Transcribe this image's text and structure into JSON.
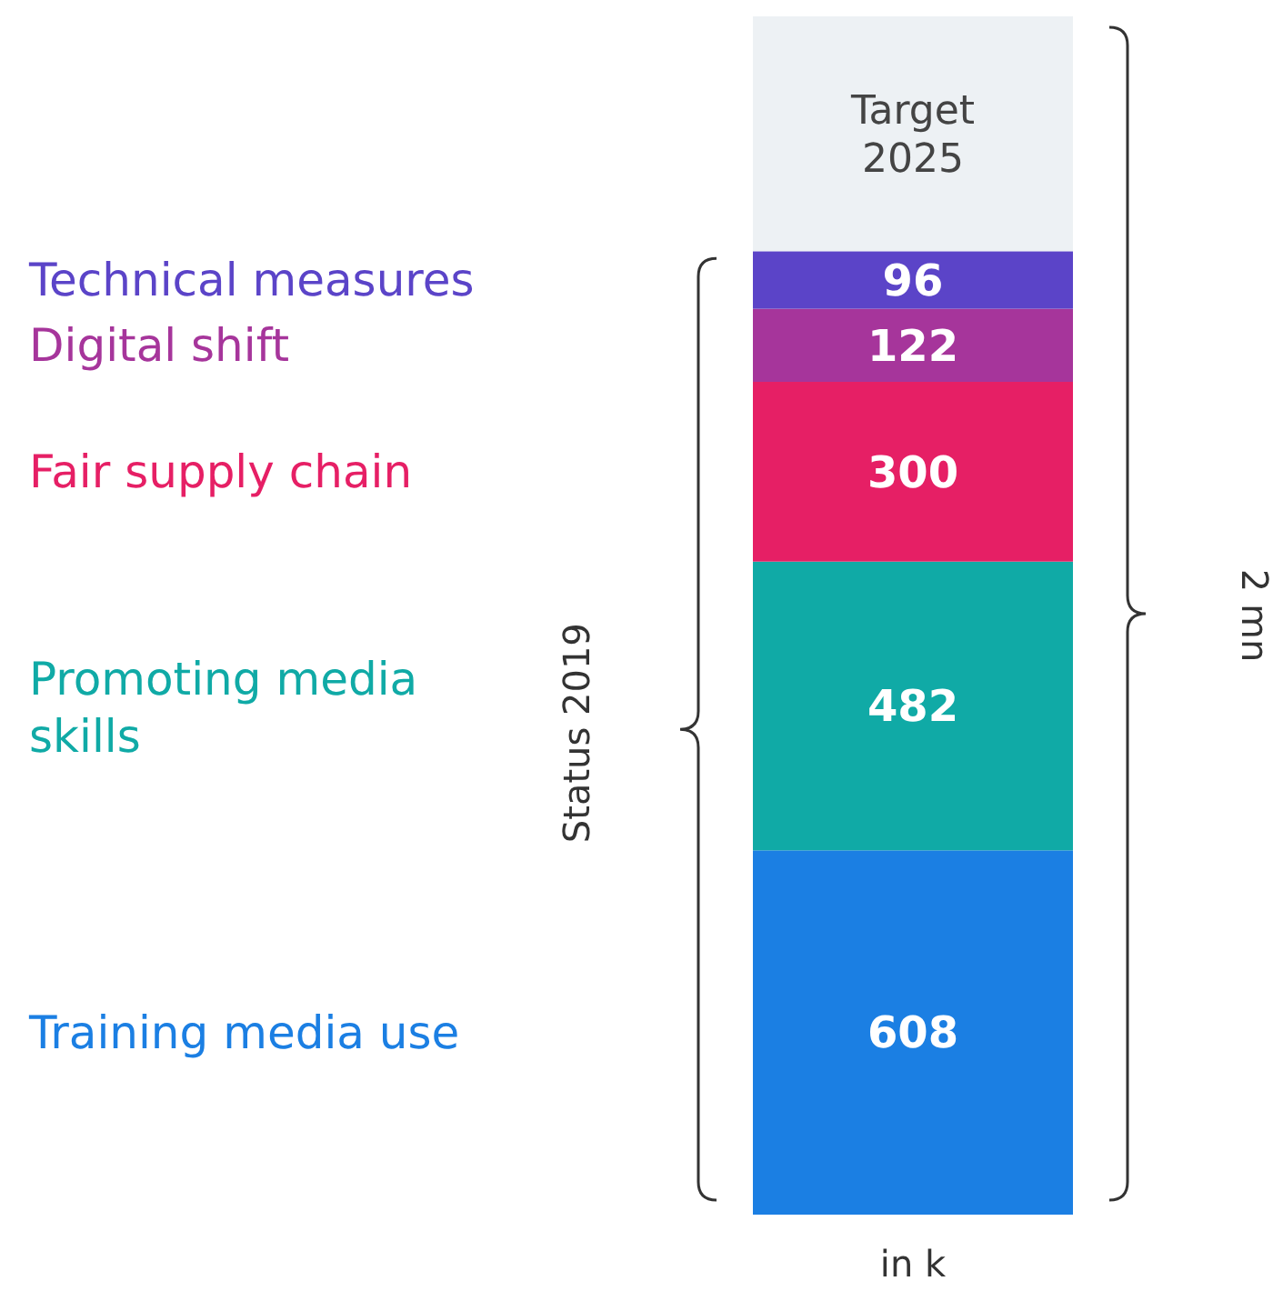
{
  "chart_data": {
    "type": "bar",
    "stacked": true,
    "categories": [
      null
    ],
    "ylim": [
      0,
      2000
    ],
    "tick_labels": false,
    "series": [
      {
        "name": "Training media use",
        "color": "#1b7fe3",
        "values": [
          608
        ],
        "value_labels": [
          "608"
        ]
      },
      {
        "name": "Promoting media skills",
        "color": "#10aaa6",
        "values": [
          482
        ],
        "value_labels": [
          "482"
        ]
      },
      {
        "name": "Fair supply chain",
        "color": "#e61f65",
        "values": [
          300
        ],
        "value_labels": [
          "300"
        ]
      },
      {
        "name": "Digital shift",
        "color": "#a6359b",
        "values": [
          122
        ],
        "value_labels": [
          "122"
        ]
      },
      {
        "name": "Technical measures",
        "color": "#5b44c8",
        "values": [
          96
        ],
        "value_labels": [
          "96"
        ]
      },
      {
        "name": "Target 2025",
        "color": "#edf1f4",
        "values": [
          392
        ],
        "value_labels": [
          null
        ]
      }
    ],
    "annotations": [
      "Status 2019",
      "2 mn",
      "in k"
    ]
  }
}
